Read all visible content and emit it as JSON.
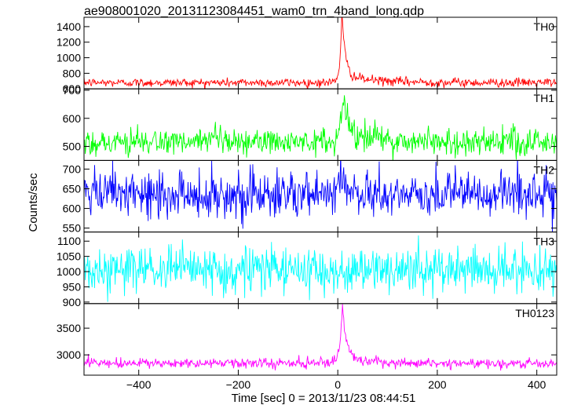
{
  "chart_data": {
    "type": "line",
    "title": "ae908001020_20131123084451_wam0_trn_4band_long.qdp",
    "xlabel": "Time [sec] 0 = 2013/11/23 08:44:51",
    "ylabel": "Counts/sec",
    "xlim": [
      -510,
      440
    ],
    "x_ticks": [
      -400,
      -200,
      0,
      200,
      400
    ],
    "x_tick_labels": [
      "−400",
      "−200",
      "0",
      "200",
      "400"
    ],
    "grid": false,
    "series": [
      {
        "name": "TH0",
        "color": "#ff0000",
        "ylim": [
          600,
          1520
        ],
        "y_ticks": [
          600,
          800,
          1000,
          1200,
          1400
        ],
        "y_tick_labels": [
          "600",
          "800",
          "1000",
          "1200",
          "1400"
        ],
        "baseline": 680,
        "noise": 28,
        "peak": 800,
        "peak_time": 8,
        "rise": 4,
        "decay": 7,
        "tail_amp": 90,
        "tail_tau": 60
      },
      {
        "name": "TH1",
        "color": "#00ff00",
        "ylim": [
          450,
          705
        ],
        "y_ticks": [
          500,
          600,
          700
        ],
        "y_tick_labels": [
          "500",
          "600",
          "700"
        ],
        "baseline": 515,
        "noise": 24,
        "peak": 150,
        "peak_time": 10,
        "rise": 6,
        "decay": 10,
        "tail_amp": 35,
        "tail_tau": 60
      },
      {
        "name": "TH2",
        "color": "#0000ff",
        "ylim": [
          540,
          722
        ],
        "y_ticks": [
          550,
          600,
          650,
          700
        ],
        "y_tick_labels": [
          "550",
          "600",
          "650",
          "700"
        ],
        "baseline": 635,
        "noise": 30,
        "peak": 20,
        "peak_time": 10,
        "rise": 8,
        "decay": 20,
        "tail_amp": 0,
        "tail_tau": 60
      },
      {
        "name": "TH3",
        "color": "#00ffff",
        "ylim": [
          895,
          1130
        ],
        "y_ticks": [
          900,
          950,
          1000,
          1050,
          1100
        ],
        "y_tick_labels": [
          "900",
          "950",
          "1000",
          "1050",
          "1100"
        ],
        "baseline": 1005,
        "noise": 38,
        "peak": 0,
        "peak_time": 10,
        "rise": 8,
        "decay": 20,
        "tail_amp": 0,
        "tail_tau": 60
      },
      {
        "name": "TH0123",
        "color": "#ff00ff",
        "ylim": [
          2620,
          3960
        ],
        "y_ticks": [
          3000,
          3500
        ],
        "y_tick_labels": [
          "3000",
          "3500"
        ],
        "baseline": 2840,
        "noise": 45,
        "peak": 1000,
        "peak_time": 9,
        "rise": 5,
        "decay": 8,
        "tail_amp": 120,
        "tail_tau": 60
      }
    ]
  }
}
